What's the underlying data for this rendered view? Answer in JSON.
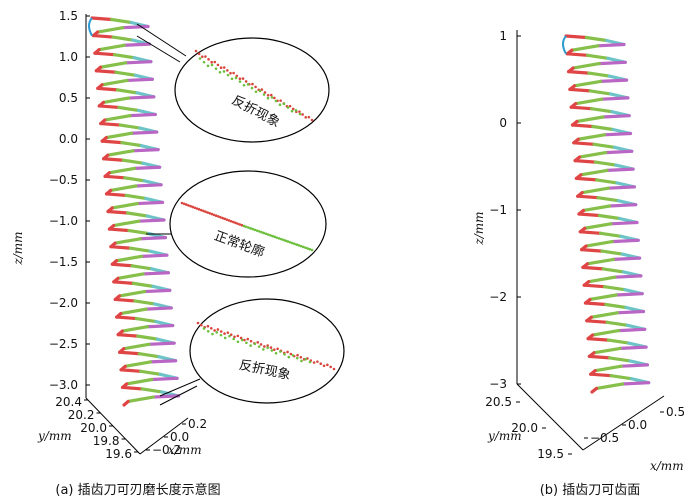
{
  "panels": {
    "a": {
      "caption": "(a) 插齿刀可刃磨长度示意图",
      "z_ticks": [
        "1.5",
        "1.0",
        "0.5",
        "0.0",
        "−0.5",
        "−1.0",
        "−1.5",
        "−2.0",
        "−2.5",
        "−3.0"
      ],
      "z_label": "z/mm",
      "y_ticks": [
        "20.4",
        "20.2",
        "20.0",
        "19.8",
        "19.6"
      ],
      "y_label": "y/mm",
      "x_ticks": [
        "0.2",
        "0.0",
        "−0.2"
      ],
      "x_label": "x/mm",
      "callouts": [
        {
          "text": "反折现象",
          "kind": "fold"
        },
        {
          "text": "正常轮廓",
          "kind": "normal"
        },
        {
          "text": "反折现象",
          "kind": "fold"
        }
      ]
    },
    "b": {
      "caption": "(b) 插齿刀可齿面",
      "z_ticks": [
        "1",
        "0",
        "−1",
        "−2",
        "−3"
      ],
      "z_label": "z/mm",
      "y_ticks": [
        "20.5",
        "20.0",
        "19.5"
      ],
      "y_label": "y/mm",
      "x_ticks": [
        "0.5",
        "0.0",
        "−0.5"
      ],
      "x_label": "x/mm"
    }
  },
  "colors": {
    "segments": [
      "#e04545",
      "#86c04a",
      "#b966c4",
      "#6cc4c8"
    ],
    "point_red": "#d9463e",
    "point_green": "#6bbf3c",
    "helix_left": "#2c9bd1"
  }
}
